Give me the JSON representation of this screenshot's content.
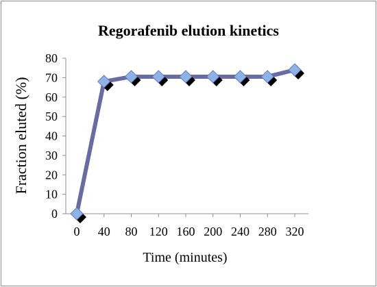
{
  "chart_data": {
    "type": "line",
    "title": "Regorafenib elution kinetics",
    "xlabel": "Time (minutes)",
    "ylabel": "Fraction eluted (%)",
    "categories": [
      "0",
      "40",
      "80",
      "120",
      "160",
      "200",
      "240",
      "280",
      "320"
    ],
    "x": [
      0,
      40,
      80,
      120,
      160,
      200,
      240,
      280,
      320
    ],
    "ylim": [
      0,
      80
    ],
    "yticks": [
      0,
      10,
      20,
      30,
      40,
      50,
      60,
      70,
      80
    ],
    "grid": false,
    "legend": "none",
    "series": [
      {
        "values": [
          0,
          68,
          70.5,
          70.5,
          70.5,
          70.5,
          70.5,
          70.5,
          74
        ]
      }
    ],
    "colors": {
      "line": "#6a6aa4",
      "marker_fill": "#8eb2e8",
      "marker_shadow": "#000000",
      "axis": "#8c8c8c",
      "frame": "#8c8c8c"
    },
    "marker": "diamond"
  }
}
